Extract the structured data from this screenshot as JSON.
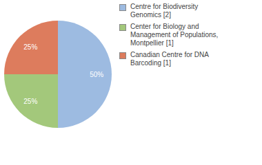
{
  "chart_data": {
    "type": "pie",
    "categories": [
      "Centre for Biodiversity Genomics [2]",
      "Center for Biology and Management of Populations, Montpellier [1]",
      "Canadian Centre for DNA Barcoding [1]"
    ],
    "values": [
      50,
      25,
      25
    ],
    "value_labels": [
      "50%",
      "25%",
      "25%"
    ],
    "colors": [
      "#9dbbe1",
      "#a3c87b",
      "#dd7c5d"
    ],
    "data_labels": true,
    "legend": "top-right"
  }
}
